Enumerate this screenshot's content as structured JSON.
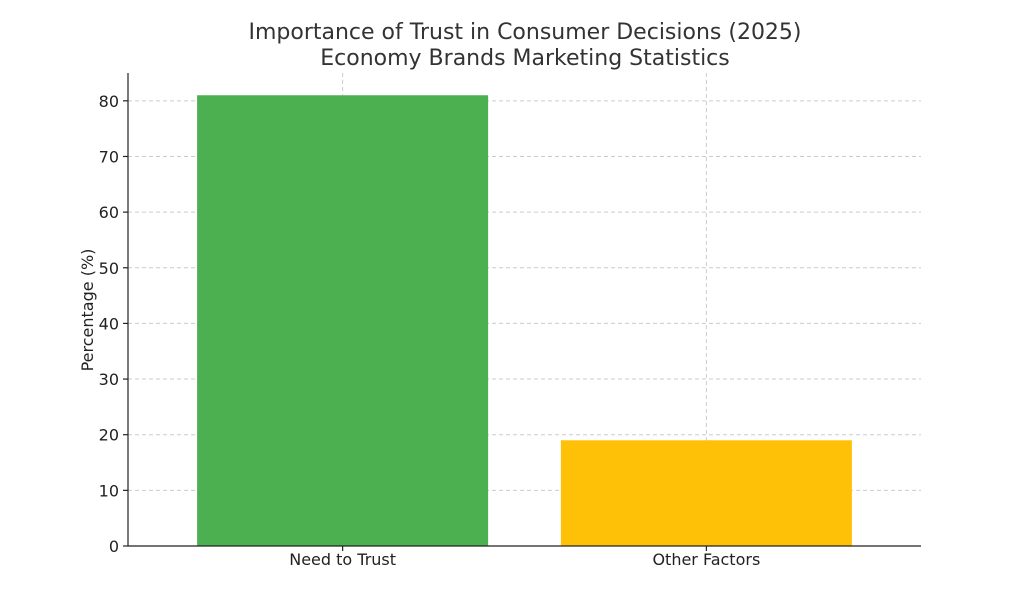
{
  "chart_data": {
    "type": "bar",
    "title": "Importance of Trust in Consumer Decisions (2025)",
    "subtitle": "Economy Brands Marketing Statistics",
    "xlabel": "",
    "ylabel": "Percentage (%)",
    "categories": [
      "Need to Trust",
      "Other Factors"
    ],
    "values": [
      81,
      19
    ],
    "colors": [
      "#4caf50",
      "#ffc107"
    ],
    "ylim": [
      0,
      85
    ],
    "yticks": [
      0,
      10,
      20,
      30,
      40,
      50,
      60,
      70,
      80
    ],
    "grid": true
  }
}
